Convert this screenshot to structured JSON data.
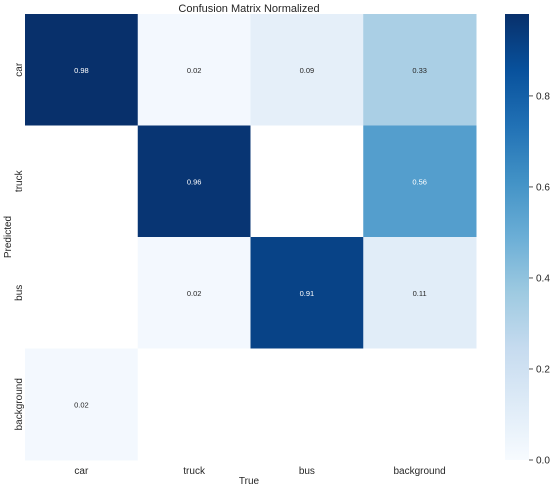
{
  "chart_data": {
    "type": "heatmap",
    "title": "Confusion Matrix Normalized",
    "xlabel": "True",
    "ylabel": "Predicted",
    "x_categories": [
      "car",
      "truck",
      "bus",
      "background"
    ],
    "y_categories": [
      "car",
      "truck",
      "bus",
      "background"
    ],
    "values": [
      [
        0.98,
        0.02,
        0.09,
        0.33
      ],
      [
        null,
        0.96,
        null,
        0.56
      ],
      [
        null,
        0.02,
        0.91,
        0.11
      ],
      [
        0.02,
        null,
        null,
        null
      ]
    ],
    "value_labels": [
      [
        "0.98",
        "0.02",
        "0.09",
        "0.33"
      ],
      [
        "",
        "0.96",
        "",
        "0.56"
      ],
      [
        "",
        "0.02",
        "0.91",
        "0.11"
      ],
      [
        "0.02",
        "",
        "",
        ""
      ]
    ],
    "colorbar": {
      "range": [
        0,
        0.98
      ],
      "ticks": [
        0.0,
        0.2,
        0.4,
        0.6,
        0.8
      ],
      "tick_labels": [
        "0.0",
        "0.2",
        "0.4",
        "0.6",
        "0.8"
      ],
      "colormap": "Blues"
    },
    "grid": false
  }
}
